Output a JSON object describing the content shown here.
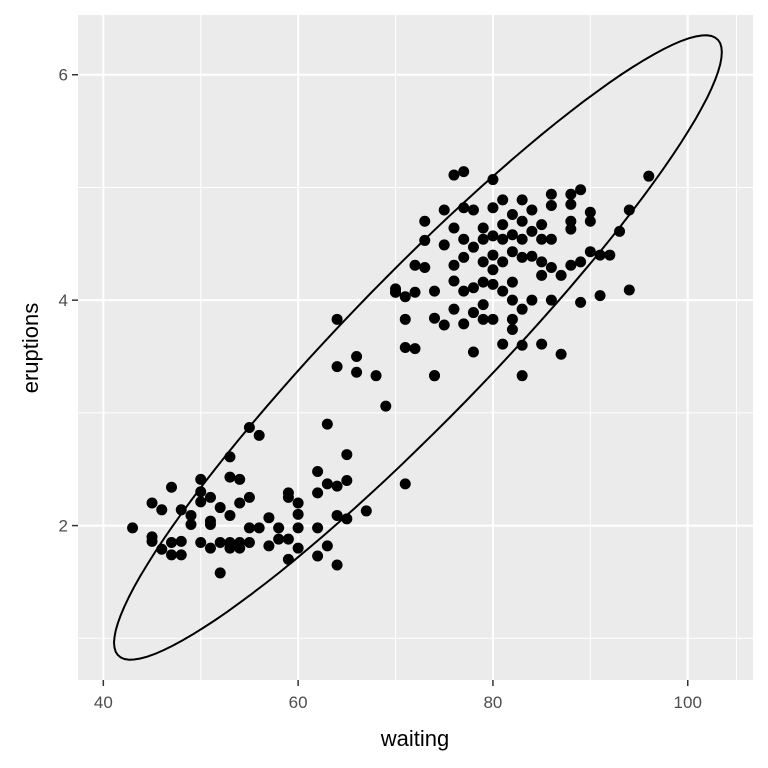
{
  "chart_data": {
    "type": "scatter",
    "xlabel": "waiting",
    "ylabel": "eruptions",
    "xlim": [
      37.4,
      106.7
    ],
    "ylim": [
      0.63,
      6.53
    ],
    "x_ticks": [
      40,
      60,
      80,
      100
    ],
    "y_ticks": [
      2,
      4,
      6
    ],
    "x_tick_labels": [
      "40",
      "60",
      "80",
      "100"
    ],
    "y_tick_labels": [
      "2",
      "4",
      "6"
    ],
    "grid": true,
    "panel_color": "#EBEBEB",
    "point_color": "#000000",
    "ellipse": {
      "level": 0.95,
      "center": [
        72.3,
        3.58
      ],
      "axis_a": [
        31.2,
        2.62
      ],
      "axis_b": [
        0,
        0.9
      ]
    },
    "points": [
      [
        43,
        1.98
      ],
      [
        45,
        2.2
      ],
      [
        45,
        1.9
      ],
      [
        45,
        1.86
      ],
      [
        46,
        2.14
      ],
      [
        46,
        1.79
      ],
      [
        47,
        2.34
      ],
      [
        47,
        1.85
      ],
      [
        47,
        1.74
      ],
      [
        48,
        1.74
      ],
      [
        48,
        1.86
      ],
      [
        48,
        2.14
      ],
      [
        49,
        2.01
      ],
      [
        49,
        2.09
      ],
      [
        50,
        2.3
      ],
      [
        50,
        2.41
      ],
      [
        50,
        2.21
      ],
      [
        50,
        1.85
      ],
      [
        51,
        2.25
      ],
      [
        51,
        2.01
      ],
      [
        51,
        1.8
      ],
      [
        51,
        2.04
      ],
      [
        52,
        2.16
      ],
      [
        52,
        1.85
      ],
      [
        52,
        1.58
      ],
      [
        53,
        2.09
      ],
      [
        53,
        2.43
      ],
      [
        53,
        2.61
      ],
      [
        53,
        1.85
      ],
      [
        53,
        1.8
      ],
      [
        54,
        2.41
      ],
      [
        54,
        2.2
      ],
      [
        54,
        1.85
      ],
      [
        54,
        1.8
      ],
      [
        55,
        2.25
      ],
      [
        55,
        2.87
      ],
      [
        55,
        1.85
      ],
      [
        55,
        1.98
      ],
      [
        56,
        2.8
      ],
      [
        56,
        1.98
      ],
      [
        57,
        2.07
      ],
      [
        57,
        1.82
      ],
      [
        58,
        1.88
      ],
      [
        58,
        1.98
      ],
      [
        59,
        1.88
      ],
      [
        59,
        2.29
      ],
      [
        59,
        2.25
      ],
      [
        59,
        1.7
      ],
      [
        60,
        1.98
      ],
      [
        60,
        2.2
      ],
      [
        60,
        1.8
      ],
      [
        60,
        2.1
      ],
      [
        62,
        2.48
      ],
      [
        62,
        2.29
      ],
      [
        62,
        1.98
      ],
      [
        62,
        1.73
      ],
      [
        63,
        2.9
      ],
      [
        63,
        2.37
      ],
      [
        63,
        1.82
      ],
      [
        64,
        2.35
      ],
      [
        64,
        2.09
      ],
      [
        65,
        2.63
      ],
      [
        65,
        2.4
      ],
      [
        65,
        2.06
      ],
      [
        64,
        1.65
      ],
      [
        64,
        3.83
      ],
      [
        64,
        3.41
      ],
      [
        66,
        3.5
      ],
      [
        66,
        3.36
      ],
      [
        68,
        3.33
      ],
      [
        69,
        3.06
      ],
      [
        67,
        2.13
      ],
      [
        71,
        2.37
      ],
      [
        70,
        4.07
      ],
      [
        70,
        4.1
      ],
      [
        73,
        4.7
      ],
      [
        73,
        4.53
      ],
      [
        73,
        4.29
      ],
      [
        74,
        3.33
      ],
      [
        74,
        4.08
      ],
      [
        74,
        3.84
      ],
      [
        75,
        4.8
      ],
      [
        75,
        4.49
      ],
      [
        75,
        3.78
      ],
      [
        76,
        4.64
      ],
      [
        76,
        4.31
      ],
      [
        76,
        4.17
      ],
      [
        76,
        3.92
      ],
      [
        77,
        4.82
      ],
      [
        77,
        4.54
      ],
      [
        77,
        4.38
      ],
      [
        77,
        4.08
      ],
      [
        77,
        3.79
      ],
      [
        78,
        4.8
      ],
      [
        78,
        4.47
      ],
      [
        78,
        4.11
      ],
      [
        78,
        3.89
      ],
      [
        79,
        4.64
      ],
      [
        79,
        4.54
      ],
      [
        79,
        4.34
      ],
      [
        79,
        4.16
      ],
      [
        79,
        3.96
      ],
      [
        80,
        5.07
      ],
      [
        80,
        4.82
      ],
      [
        80,
        4.57
      ],
      [
        80,
        4.4
      ],
      [
        80,
        4.27
      ],
      [
        80,
        4.14
      ],
      [
        80,
        3.83
      ],
      [
        81,
        4.89
      ],
      [
        81,
        4.67
      ],
      [
        81,
        4.54
      ],
      [
        81,
        4.34
      ],
      [
        81,
        4.08
      ],
      [
        82,
        4.76
      ],
      [
        82,
        4.58
      ],
      [
        82,
        4.43
      ],
      [
        82,
        4.16
      ],
      [
        82,
        3.74
      ],
      [
        83,
        4.89
      ],
      [
        83,
        4.7
      ],
      [
        83,
        4.54
      ],
      [
        83,
        4.38
      ],
      [
        83,
        3.92
      ],
      [
        83,
        3.6
      ],
      [
        84,
        4.8
      ],
      [
        84,
        4.61
      ],
      [
        84,
        4.39
      ],
      [
        84,
        4.0
      ],
      [
        85,
        4.67
      ],
      [
        85,
        4.54
      ],
      [
        85,
        4.34
      ],
      [
        85,
        4.22
      ],
      [
        86,
        4.94
      ],
      [
        86,
        4.84
      ],
      [
        86,
        4.54
      ],
      [
        86,
        4.29
      ],
      [
        86,
        4.0
      ],
      [
        87,
        4.22
      ],
      [
        87,
        3.52
      ],
      [
        88,
        4.94
      ],
      [
        88,
        4.85
      ],
      [
        88,
        4.7
      ],
      [
        88,
        4.63
      ],
      [
        88,
        4.31
      ],
      [
        89,
        4.98
      ],
      [
        89,
        4.34
      ],
      [
        90,
        4.78
      ],
      [
        90,
        4.7
      ],
      [
        90,
        4.43
      ],
      [
        91,
        4.4
      ],
      [
        92,
        4.4
      ],
      [
        93,
        4.61
      ],
      [
        94,
        4.8
      ],
      [
        96,
        5.1
      ],
      [
        94,
        4.09
      ],
      [
        91,
        4.04
      ],
      [
        89,
        3.98
      ],
      [
        85,
        3.61
      ],
      [
        83,
        3.33
      ],
      [
        82,
        3.83
      ],
      [
        76,
        5.11
      ],
      [
        77,
        5.14
      ],
      [
        72,
        4.31
      ],
      [
        72,
        4.07
      ],
      [
        71,
        4.03
      ],
      [
        71,
        3.83
      ],
      [
        71,
        3.58
      ],
      [
        72,
        3.57
      ],
      [
        70,
        4.07
      ],
      [
        74,
        3.33
      ],
      [
        78,
        3.54
      ],
      [
        79,
        3.83
      ],
      [
        81,
        3.61
      ],
      [
        82,
        4.0
      ]
    ]
  }
}
